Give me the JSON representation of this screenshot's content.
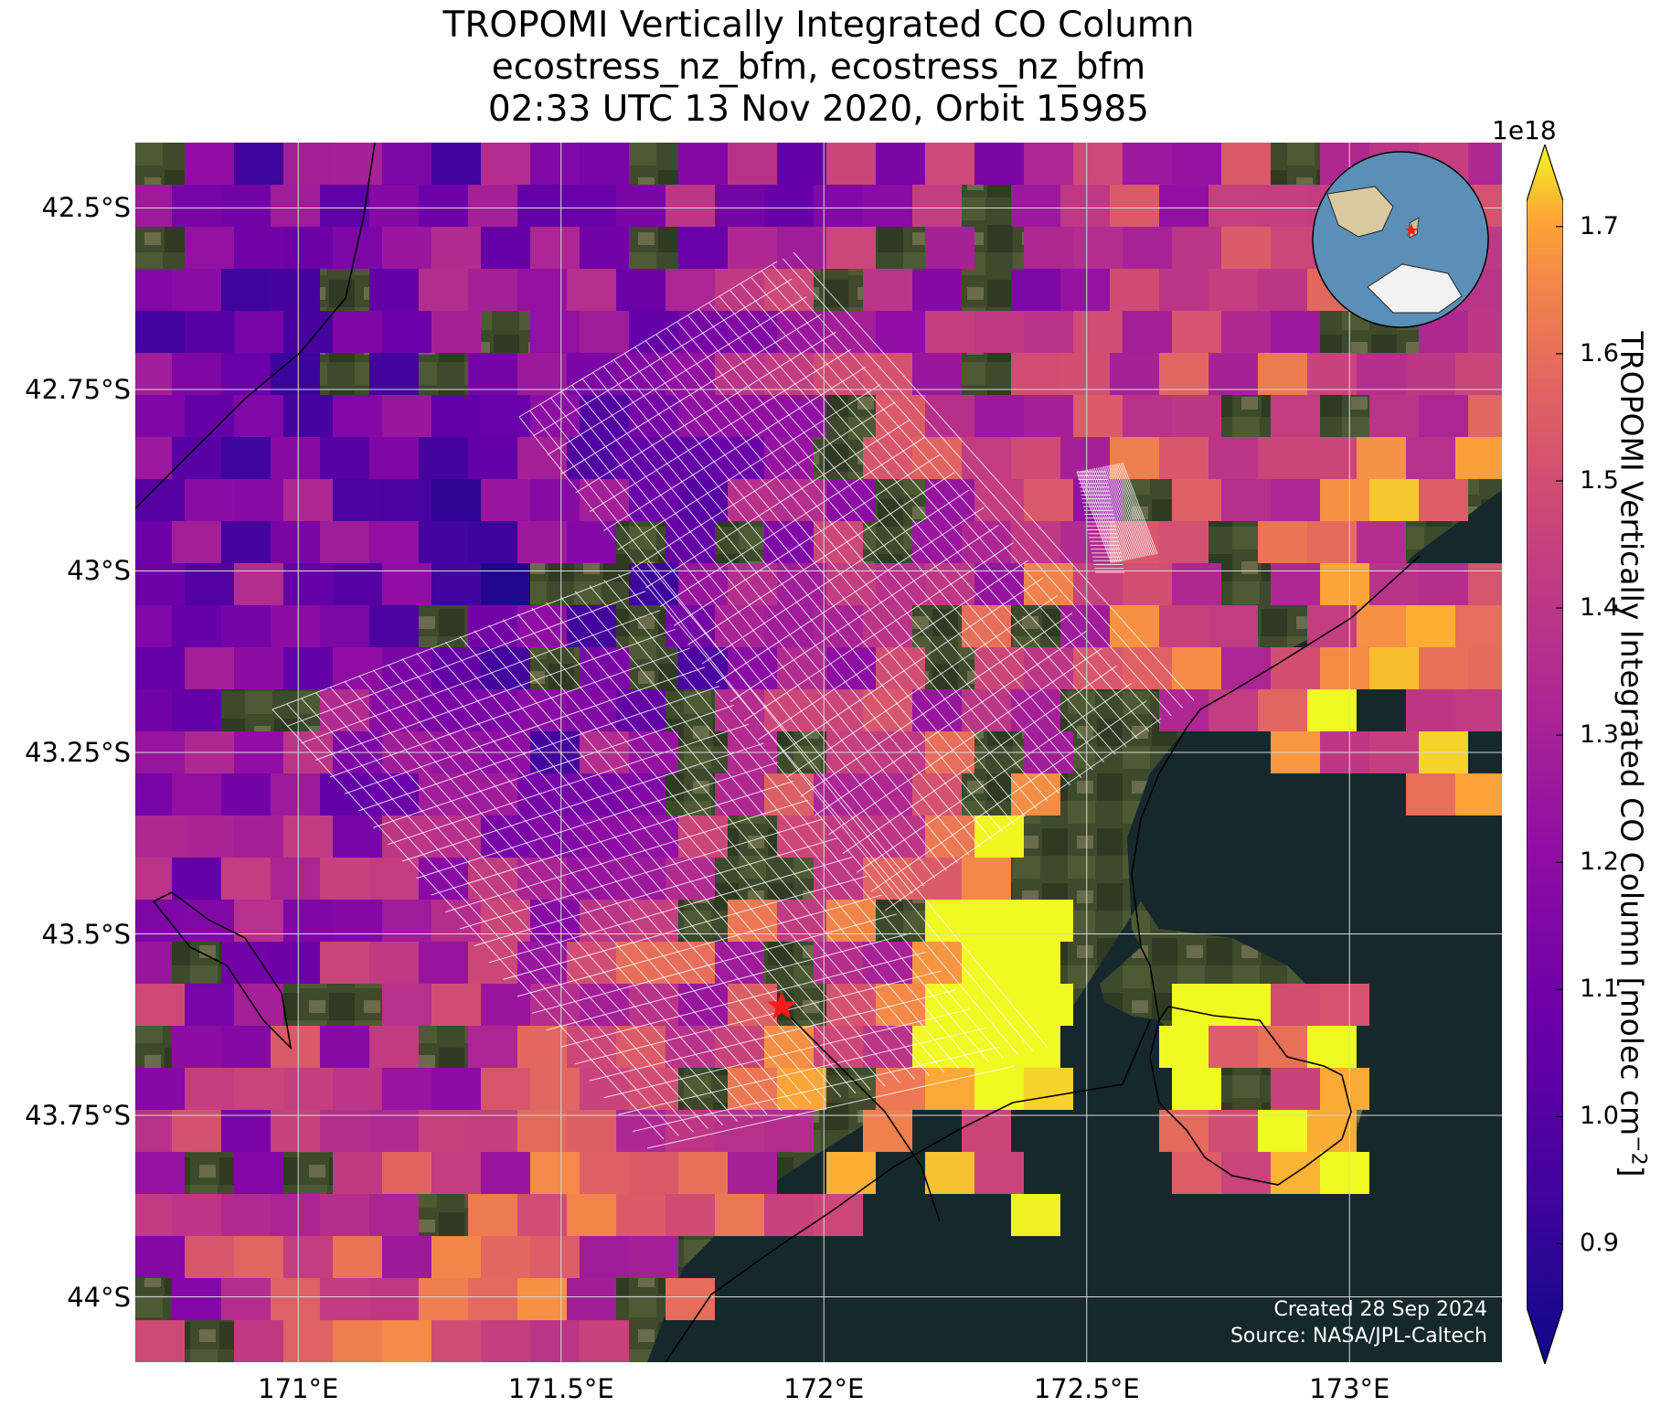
{
  "title": {
    "line1": "TROPOMI Vertically Integrated CO Column",
    "line2": "ecostress_nz_bfm, ecostress_nz_bfm",
    "line3": "02:33 UTC 13 Nov 2020, Orbit 15985"
  },
  "map": {
    "extent": {
      "lon_min": 170.69,
      "lon_max": 173.29,
      "lat_max": -42.41,
      "lat_min": -44.09
    },
    "lat_ticks": [
      {
        "value": -42.5,
        "label": "42.5°S"
      },
      {
        "value": -42.75,
        "label": "42.75°S"
      },
      {
        "value": -43.0,
        "label": "43°S"
      },
      {
        "value": -43.25,
        "label": "43.25°S"
      },
      {
        "value": -43.5,
        "label": "43.5°S"
      },
      {
        "value": -43.75,
        "label": "43.75°S"
      },
      {
        "value": -44.0,
        "label": "44°S"
      }
    ],
    "lon_ticks": [
      {
        "value": 171.0,
        "label": "171°E"
      },
      {
        "value": 171.5,
        "label": "171.5°E"
      },
      {
        "value": 172.0,
        "label": "172°E"
      },
      {
        "value": 172.5,
        "label": "172.5°E"
      },
      {
        "value": 173.0,
        "label": "173°E"
      }
    ],
    "marker": {
      "lon": 171.92,
      "lat": -43.6,
      "color": "#ff1a1a",
      "icon": "star-icon"
    },
    "colormap": "plasma",
    "grid": true,
    "basemap": "satellite-imagery",
    "inset_globe": {
      "icon": "globe-icon",
      "marker_color": "#ff1a1a"
    }
  },
  "colorbar": {
    "min": 0.85,
    "max": 1.72,
    "exponent_label": "1e18",
    "ticks": [
      {
        "value": 0.9,
        "label": "0.9"
      },
      {
        "value": 1.0,
        "label": "1.0"
      },
      {
        "value": 1.1,
        "label": "1.1"
      },
      {
        "value": 1.2,
        "label": "1.2"
      },
      {
        "value": 1.3,
        "label": "1.3"
      },
      {
        "value": 1.4,
        "label": "1.4"
      },
      {
        "value": 1.5,
        "label": "1.5"
      },
      {
        "value": 1.6,
        "label": "1.6"
      },
      {
        "value": 1.7,
        "label": "1.7"
      }
    ],
    "label": "TROPOMI Vertically Integrated CO Column [molec cm",
    "label_sup": "−2",
    "label_end": "]"
  },
  "credit": {
    "line1": "Created 28 Sep 2024",
    "line2": "Source: NASA/JPL-Caltech"
  }
}
